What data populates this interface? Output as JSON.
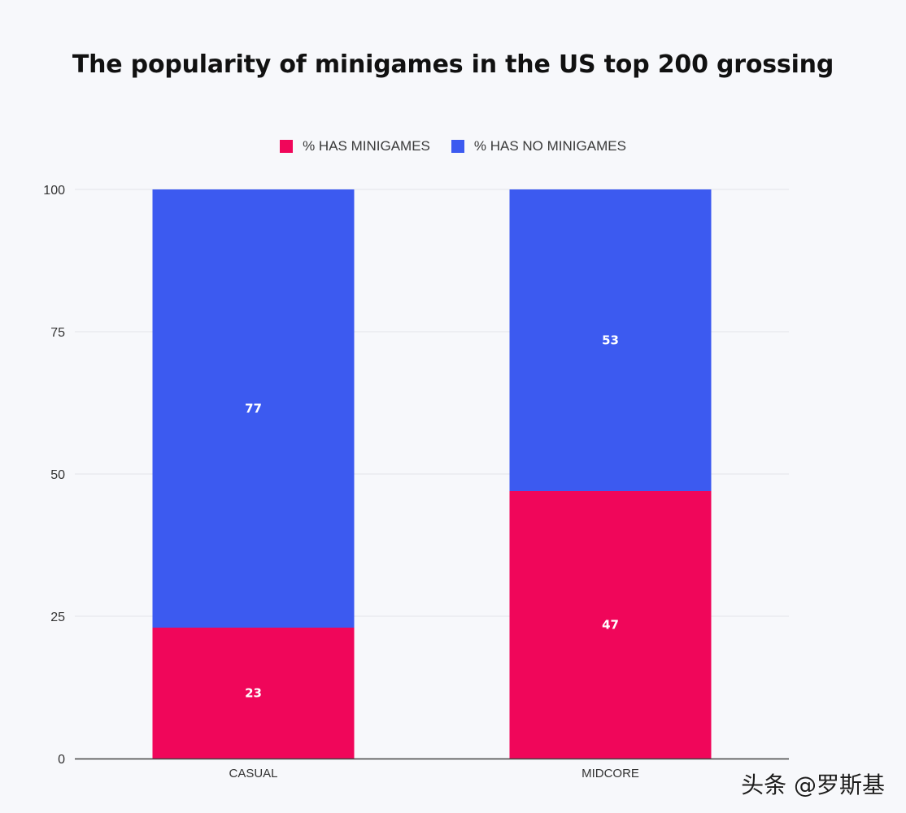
{
  "chart_data": {
    "type": "bar",
    "stacked": true,
    "title": "The popularity of minigames in the US top 200 grossing",
    "categories": [
      "CASUAL",
      "MIDCORE"
    ],
    "series": [
      {
        "name": "%  HAS MINIGAMES",
        "values": [
          23,
          47
        ],
        "color": "#f0065a"
      },
      {
        "name": "% HAS NO MINIGAMES",
        "values": [
          77,
          53
        ],
        "color": "#3c5af0"
      }
    ],
    "yticks": [
      "0",
      "25",
      "50",
      "75",
      "100"
    ],
    "ylim": [
      0,
      100
    ],
    "xlabel": "",
    "ylabel": "",
    "grid": true,
    "legend_position": "top-center"
  },
  "watermark": "头条 @罗斯基"
}
